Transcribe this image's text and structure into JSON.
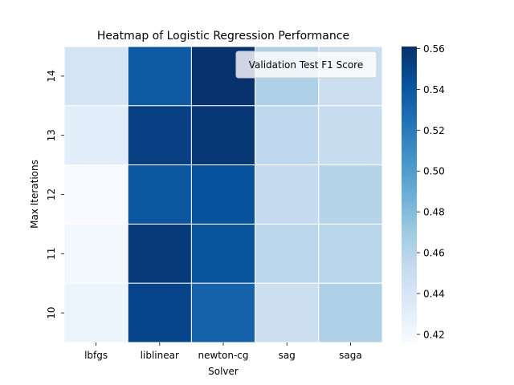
{
  "chart_data": {
    "type": "heatmap",
    "title": "Heatmap of Logistic Regression Performance",
    "xlabel": "Solver",
    "ylabel": "Max Iterations",
    "x_categories": [
      "lbfgs",
      "liblinear",
      "newton-cg",
      "sag",
      "saga"
    ],
    "y_categories": [
      "14",
      "13",
      "12",
      "11",
      "10"
    ],
    "values": [
      [
        0.442,
        0.538,
        0.56,
        0.463,
        0.448
      ],
      [
        0.432,
        0.552,
        0.557,
        0.455,
        0.451
      ],
      [
        0.416,
        0.54,
        0.543,
        0.453,
        0.46
      ],
      [
        0.419,
        0.556,
        0.542,
        0.457,
        0.458
      ],
      [
        0.423,
        0.55,
        0.533,
        0.448,
        0.463
      ]
    ],
    "colorbar": {
      "vmin": 0.416,
      "vmax": 0.561,
      "ticks": [
        "0.42",
        "0.44",
        "0.46",
        "0.48",
        "0.50",
        "0.52",
        "0.54",
        "0.56"
      ]
    },
    "colormap": "Blues",
    "legend_text": "Validation Test F1 Score",
    "legend_position": "upper right"
  }
}
